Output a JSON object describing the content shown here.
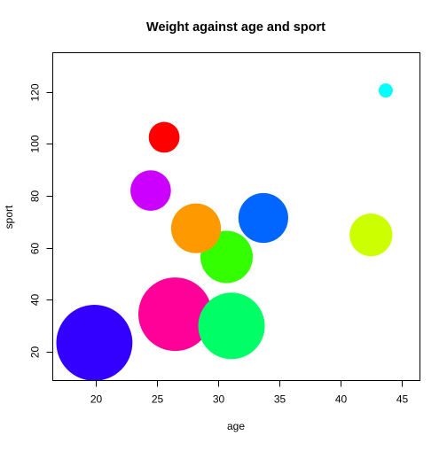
{
  "chart_data": {
    "type": "scatter",
    "title": "Weight against age and sport",
    "xlabel": "age",
    "ylabel": "sport",
    "xlim": [
      16.5,
      46.5
    ],
    "ylim": [
      9,
      135
    ],
    "xticks": [
      20,
      25,
      30,
      35,
      40,
      45
    ],
    "yticks": [
      20,
      40,
      60,
      80,
      100,
      120
    ],
    "grid": false,
    "legend": "none",
    "points": [
      {
        "x": 19.9,
        "y": 23.5,
        "size": 32,
        "color": "#3300ff"
      },
      {
        "x": 26.5,
        "y": 34.5,
        "size": 31,
        "color": "#ff0099"
      },
      {
        "x": 31.1,
        "y": 30.0,
        "size": 28,
        "color": "#00ff66"
      },
      {
        "x": 30.7,
        "y": 56.5,
        "size": 22,
        "color": "#33ff00"
      },
      {
        "x": 28.2,
        "y": 67.5,
        "size": 21,
        "color": "#ff9900"
      },
      {
        "x": 33.7,
        "y": 71.5,
        "size": 21,
        "color": "#0066ff"
      },
      {
        "x": 42.5,
        "y": 65.0,
        "size": 18,
        "color": "#ccff00"
      },
      {
        "x": 24.5,
        "y": 82.0,
        "size": 17,
        "color": "#cc00ff"
      },
      {
        "x": 25.6,
        "y": 102.5,
        "size": 13,
        "color": "#ff0000"
      },
      {
        "x": 43.7,
        "y": 120.5,
        "size": 6,
        "color": "#00ffff"
      }
    ]
  }
}
